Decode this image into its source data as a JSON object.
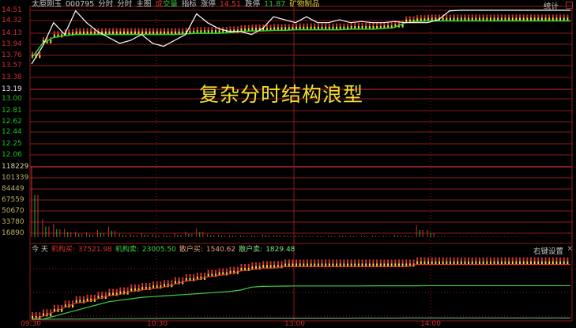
{
  "header": {
    "stock_name": "太原刚玉",
    "code": "000795",
    "items": [
      "分时",
      "分时",
      "主图"
    ],
    "vol_label_1": "成",
    "vol_label_2": "交量",
    "indicator": "指标",
    "limit_up_label": "涨停",
    "limit_up": "14.51",
    "limit_down_label": "跌停",
    "limit_down": "11.87",
    "sector": "矿物制品",
    "stats": "统计"
  },
  "price_axis": [
    {
      "v": "14.51",
      "c": "#d03030"
    },
    {
      "v": "14.32",
      "c": "#d03030"
    },
    {
      "v": "14.13",
      "c": "#d03030"
    },
    {
      "v": "13.94",
      "c": "#d03030"
    },
    {
      "v": "13.76",
      "c": "#d03030"
    },
    {
      "v": "13.57",
      "c": "#d03030"
    },
    {
      "v": "13.38",
      "c": "#d03030"
    },
    {
      "v": "13.19",
      "c": "#e0e0e0"
    },
    {
      "v": "13.00",
      "c": "#20c020"
    },
    {
      "v": "12.81",
      "c": "#20c020"
    },
    {
      "v": "12.62",
      "c": "#20c020"
    },
    {
      "v": "12.44",
      "c": "#20c020"
    },
    {
      "v": "12.25",
      "c": "#20c020"
    },
    {
      "v": "12.06",
      "c": "#20c020"
    }
  ],
  "volume_axis": [
    "118229",
    "101339",
    "84449",
    "67559",
    "50670",
    "33780",
    "16890"
  ],
  "annotation": "复杂分时结构浪型",
  "sub_panel": {
    "today": "今 天",
    "inst_buy_label": "机构买:",
    "inst_buy": "37521.98",
    "inst_sell_label": "机构卖:",
    "inst_sell": "23005.50",
    "retail_buy_label": "散户买:",
    "retail_buy": "1540.62",
    "retail_sell_label": "散户卖:",
    "retail_sell": "1829.48",
    "settings": "右键设置",
    "close": "×"
  },
  "time_axis": [
    "09:30",
    "10:30",
    "13:00",
    "14:00"
  ],
  "colors": {
    "up": "#d03030",
    "down": "#20c020",
    "price_line": "#ffffff",
    "avg_band": "#f0e030",
    "grid": "#8b1a1a"
  },
  "chart_data": {
    "type": "line",
    "ylim": [
      12.06,
      14.51
    ],
    "prev_close": 13.19,
    "price": [
      13.6,
      13.9,
      14.3,
      14.1,
      14.5,
      14.3,
      14.15,
      14.05,
      13.95,
      14.0,
      14.1,
      13.95,
      13.9,
      14.0,
      14.1,
      14.45,
      14.3,
      14.2,
      14.15,
      14.15,
      14.1,
      14.2,
      14.4,
      14.35,
      14.3,
      14.4,
      14.3,
      14.3,
      14.35,
      14.3,
      14.32,
      14.3,
      14.3,
      14.32,
      14.3,
      14.3,
      14.3,
      14.35,
      14.5,
      14.51,
      14.51,
      14.51,
      14.51,
      14.51,
      14.51,
      14.51,
      14.51,
      14.51,
      14.51,
      14.51
    ],
    "avg": [
      13.7,
      13.95,
      14.05,
      14.08,
      14.1,
      14.1,
      14.1,
      14.1,
      14.1,
      14.1,
      14.1,
      14.1,
      14.1,
      14.1,
      14.11,
      14.12,
      14.12,
      14.12,
      14.13,
      14.15,
      14.16,
      14.16,
      14.17,
      14.17,
      14.18,
      14.18,
      14.18,
      14.18,
      14.18,
      14.19,
      14.19,
      14.19,
      14.2,
      14.22,
      14.3,
      14.32,
      14.33,
      14.33,
      14.33,
      14.33,
      14.33,
      14.33,
      14.33,
      14.33,
      14.33,
      14.33,
      14.33,
      14.33,
      14.33,
      14.33
    ],
    "volume": [
      118229,
      30000,
      22000,
      14000,
      9000,
      8000,
      12000,
      18000,
      6000,
      5000,
      7000,
      5000,
      4000,
      6000,
      9000,
      14000,
      5000,
      4000,
      3000,
      3000,
      3000,
      5000,
      4000,
      3000,
      3000,
      2000,
      2000,
      2000,
      3000,
      2000,
      2000,
      2000,
      2000,
      4000,
      3000,
      20000,
      12000,
      2000,
      1000,
      1000,
      1000,
      1000,
      800,
      800,
      600,
      600,
      600,
      500,
      500,
      500
    ],
    "inst_buy": [
      0,
      2,
      5,
      8,
      11,
      12,
      14,
      16,
      17,
      19,
      20,
      21,
      22,
      24,
      26,
      27,
      29,
      30,
      31,
      33,
      34,
      35,
      35,
      36,
      36,
      36,
      36,
      36,
      36,
      36,
      36,
      36,
      36,
      36,
      36,
      37.5,
      37.5,
      37.5,
      37.5,
      37.5,
      37.5,
      37.5,
      37.5,
      37.5,
      37.5,
      37.5,
      37.5,
      37.5,
      37.5,
      37.5
    ],
    "inst_sell": [
      0,
      0,
      2,
      4,
      6,
      8,
      10,
      12,
      13,
      14,
      15,
      15.5,
      16,
      16.5,
      17,
      17.5,
      18,
      18.5,
      19,
      20,
      22,
      22.5,
      22.6,
      22.7,
      22.8,
      22.8,
      22.8,
      22.8,
      22.8,
      22.8,
      22.8,
      22.9,
      22.9,
      22.9,
      22.9,
      22.9,
      23,
      23,
      23,
      23,
      23,
      23,
      23,
      23,
      23,
      23,
      23,
      23,
      23,
      23
    ],
    "retail": [
      0,
      0,
      0.1,
      0.2,
      0.3,
      0.4,
      0.5,
      0.6,
      0.7,
      0.8,
      0.9,
      1,
      1.1,
      1.2,
      1.3,
      1.4,
      1.5,
      1.5,
      1.5,
      1.5,
      1.5,
      1.5,
      1.5,
      1.5,
      1.5,
      1.5,
      1.5,
      1.5,
      1.5,
      1.5,
      1.6,
      1.6,
      1.6,
      1.6,
      1.7,
      1.7,
      1.7,
      1.7,
      1.7,
      1.8,
      1.8,
      1.8,
      1.8,
      1.8,
      1.8,
      1.8,
      1.8,
      1.8,
      1.8,
      1.8
    ]
  }
}
